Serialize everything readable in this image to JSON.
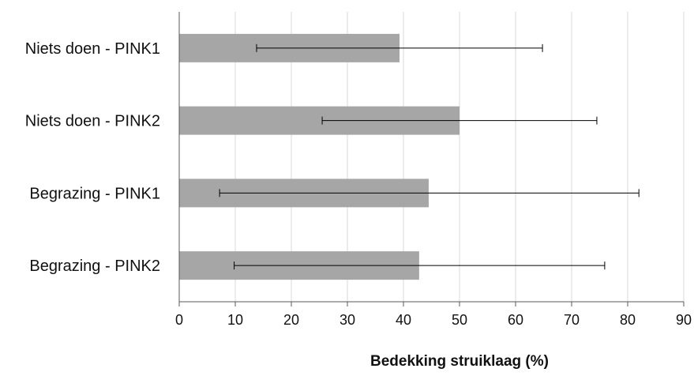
{
  "chart_data": {
    "type": "bar",
    "orientation": "horizontal",
    "title": "",
    "xlabel": "Bedekking struiklaag (%)",
    "ylabel": "",
    "categories": [
      "Niets doen - PINK1",
      "Niets doen - PINK2",
      "Begrazing - PINK1",
      "Begrazing - PINK2"
    ],
    "values": [
      39.3,
      50.0,
      44.5,
      42.8
    ],
    "error_low": [
      13.8,
      25.5,
      7.2,
      9.8
    ],
    "error_high": [
      64.8,
      74.5,
      82.0,
      75.9
    ],
    "xlim": [
      0,
      90
    ],
    "xticks": [
      "0",
      "10",
      "20",
      "30",
      "40",
      "50",
      "60",
      "70",
      "80",
      "90"
    ],
    "grid": true,
    "legend": "none",
    "colors": {
      "bar": "#a6a6a6",
      "grid": "#d9d9d9",
      "axis": "#595959",
      "error": "#000000"
    }
  }
}
